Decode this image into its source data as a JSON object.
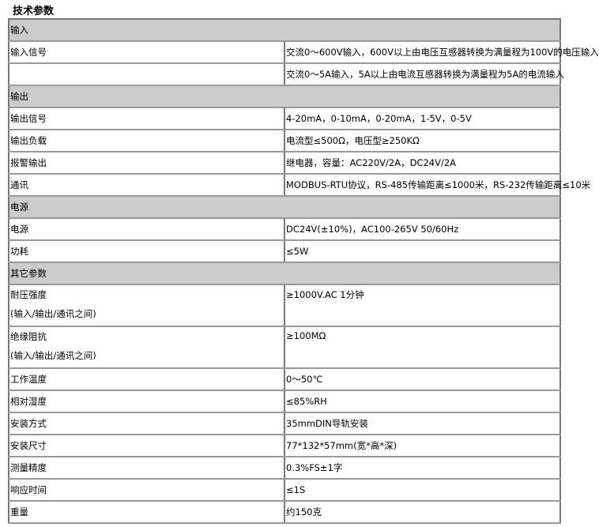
{
  "title": "技术参数",
  "rows": [
    {
      "type": "section",
      "label": "输入"
    },
    {
      "type": "row",
      "key": "输入信号",
      "value": "交流0～600V输入，600V以上由电压互感器转换为满量程为100V的电压输入"
    },
    {
      "type": "row",
      "key": "",
      "value": "交流0～5A输入，5A以上由电流互感器转换为满量程为5A的电流输入"
    },
    {
      "type": "section",
      "label": "输出"
    },
    {
      "type": "row",
      "key": "输出信号",
      "value": "4-20mA，0-10mA，0-20mA，1-5V，0-5V"
    },
    {
      "type": "row",
      "key": "输出负载",
      "value": "电流型≤500Ω，电压型≥250KΩ"
    },
    {
      "type": "row",
      "key": "报警输出",
      "value": "继电器，容量：AC220V/2A，DC24V/2A"
    },
    {
      "type": "row",
      "key": "通讯",
      "value": "MODBUS-RTU协议，RS-485传输距离≤1000米，RS-232传输距离≤10米"
    },
    {
      "type": "section",
      "label": "电源"
    },
    {
      "type": "row",
      "key": "电源",
      "value": "DC24V(±10%)，AC100-265V 50/60Hz"
    },
    {
      "type": "row",
      "key": "功耗",
      "value": "≤5W"
    },
    {
      "type": "section",
      "label": "其它参数"
    },
    {
      "type": "tall",
      "key": "耐压强度",
      "sub": "(输入/输出/通讯之间)",
      "value": "≥1000V.AC 1分钟"
    },
    {
      "type": "tall",
      "key": "绝缘阻抗",
      "sub": "(输入/输出/通讯之间)",
      "value": "≥100MΩ"
    },
    {
      "type": "row",
      "key": "工作温度",
      "value": "0～50℃"
    },
    {
      "type": "row",
      "key": "相对湿度",
      "value": "≤85%RH"
    },
    {
      "type": "row",
      "key": "安装方式",
      "value": "35mmDIN导轨安装"
    },
    {
      "type": "row",
      "key": "安装尺寸",
      "value": "77*132*57mm(宽*高*深)"
    },
    {
      "type": "row",
      "key": "测量精度",
      "value": "0.3%FS±1字"
    },
    {
      "type": "row",
      "key": "响应时间",
      "value": "≤1S"
    },
    {
      "type": "row",
      "key": "重量",
      "value": "约150克"
    }
  ]
}
